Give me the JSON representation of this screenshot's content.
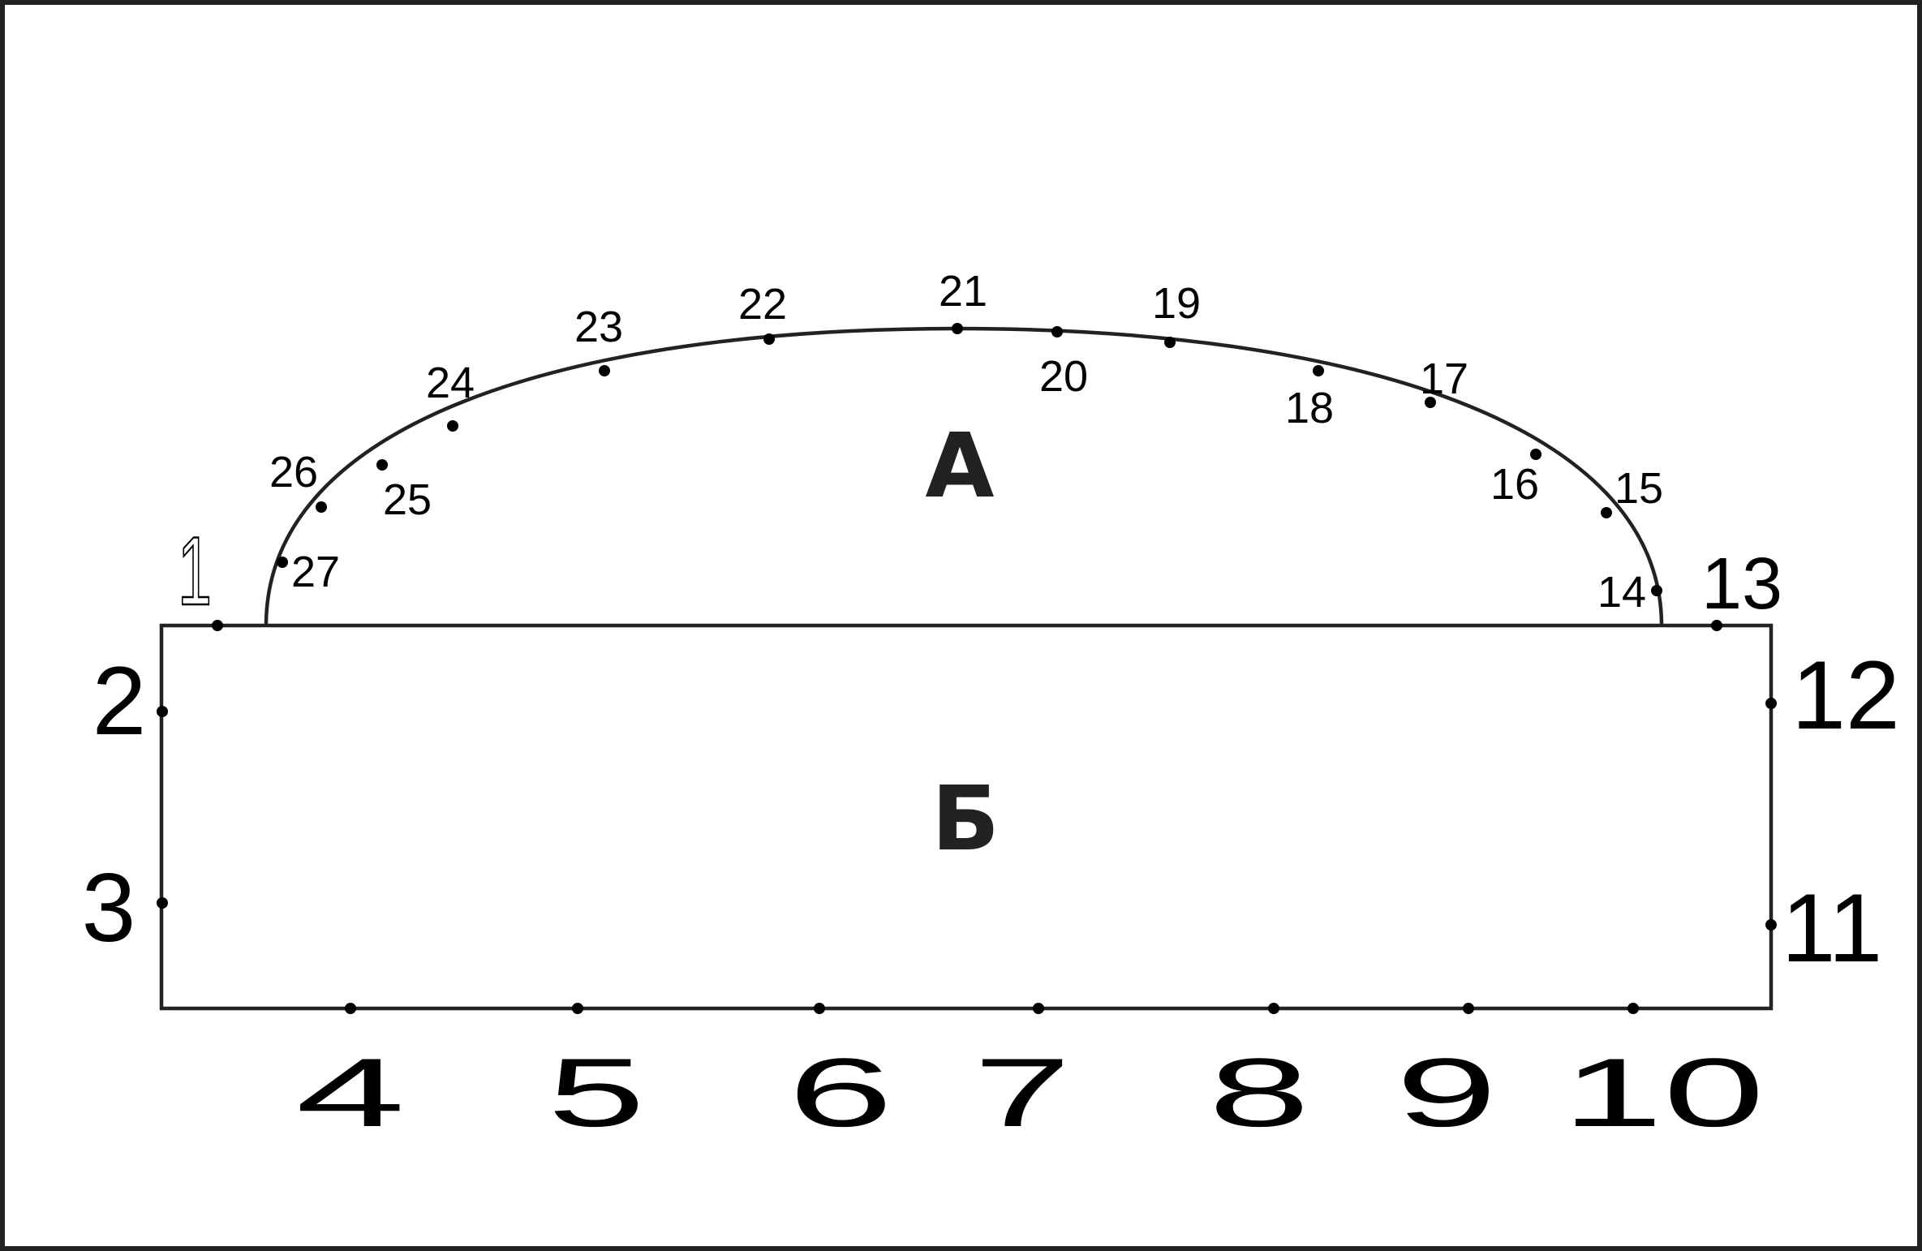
{
  "regions": {
    "upper": "А",
    "lower": "Б"
  },
  "points": {
    "p1": "1",
    "p2": "2",
    "p3": "3",
    "p4": "4",
    "p5": "5",
    "p6": "6",
    "p7": "7",
    "p8": "8",
    "p9": "9",
    "p10": "10",
    "p11": "11",
    "p12": "12",
    "p13": "13",
    "p14": "14",
    "p15": "15",
    "p16": "16",
    "p17": "17",
    "p18": "18",
    "p19": "19",
    "p20": "20",
    "p21": "21",
    "p22": "22",
    "p23": "23",
    "p24": "24",
    "p25": "25",
    "p26": "26",
    "p27": "27"
  }
}
